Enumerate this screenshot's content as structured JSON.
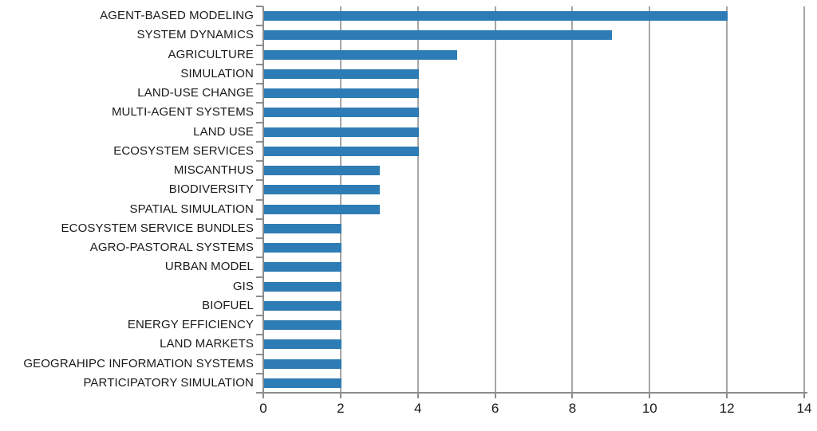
{
  "chart_data": {
    "type": "bar",
    "orientation": "horizontal",
    "title": "",
    "xlabel": "",
    "ylabel": "",
    "categories": [
      "AGENT-BASED MODELING",
      "SYSTEM DYNAMICS",
      "AGRICULTURE",
      "SIMULATION",
      "LAND-USE CHANGE",
      "MULTI-AGENT SYSTEMS",
      "LAND USE",
      "ECOSYSTEM SERVICES",
      "MISCANTHUS",
      "BIODIVERSITY",
      "SPATIAL SIMULATION",
      "ECOSYSTEM SERVICE BUNDLES",
      "AGRO-PASTORAL SYSTEMS",
      "URBAN MODEL",
      "GIS",
      "BIOFUEL",
      "ENERGY EFFICIENCY",
      "LAND MARKETS",
      "GEOGRAHIPC INFORMATION SYSTEMS",
      "PARTICIPATORY SIMULATION"
    ],
    "values": [
      12,
      9,
      5,
      4,
      4,
      4,
      4,
      4,
      3,
      3,
      3,
      2,
      2,
      2,
      2,
      2,
      2,
      2,
      2,
      2
    ],
    "xlim": [
      0,
      14
    ],
    "x_ticks": [
      0,
      2,
      4,
      6,
      8,
      10,
      12,
      14
    ],
    "grid": "vertical-only",
    "legend": "none",
    "colors": {
      "bar": "#2E7CB5",
      "gridline": "#A6A6A6",
      "axis": "#8C8C8C",
      "text": "#1A1A1A"
    }
  }
}
